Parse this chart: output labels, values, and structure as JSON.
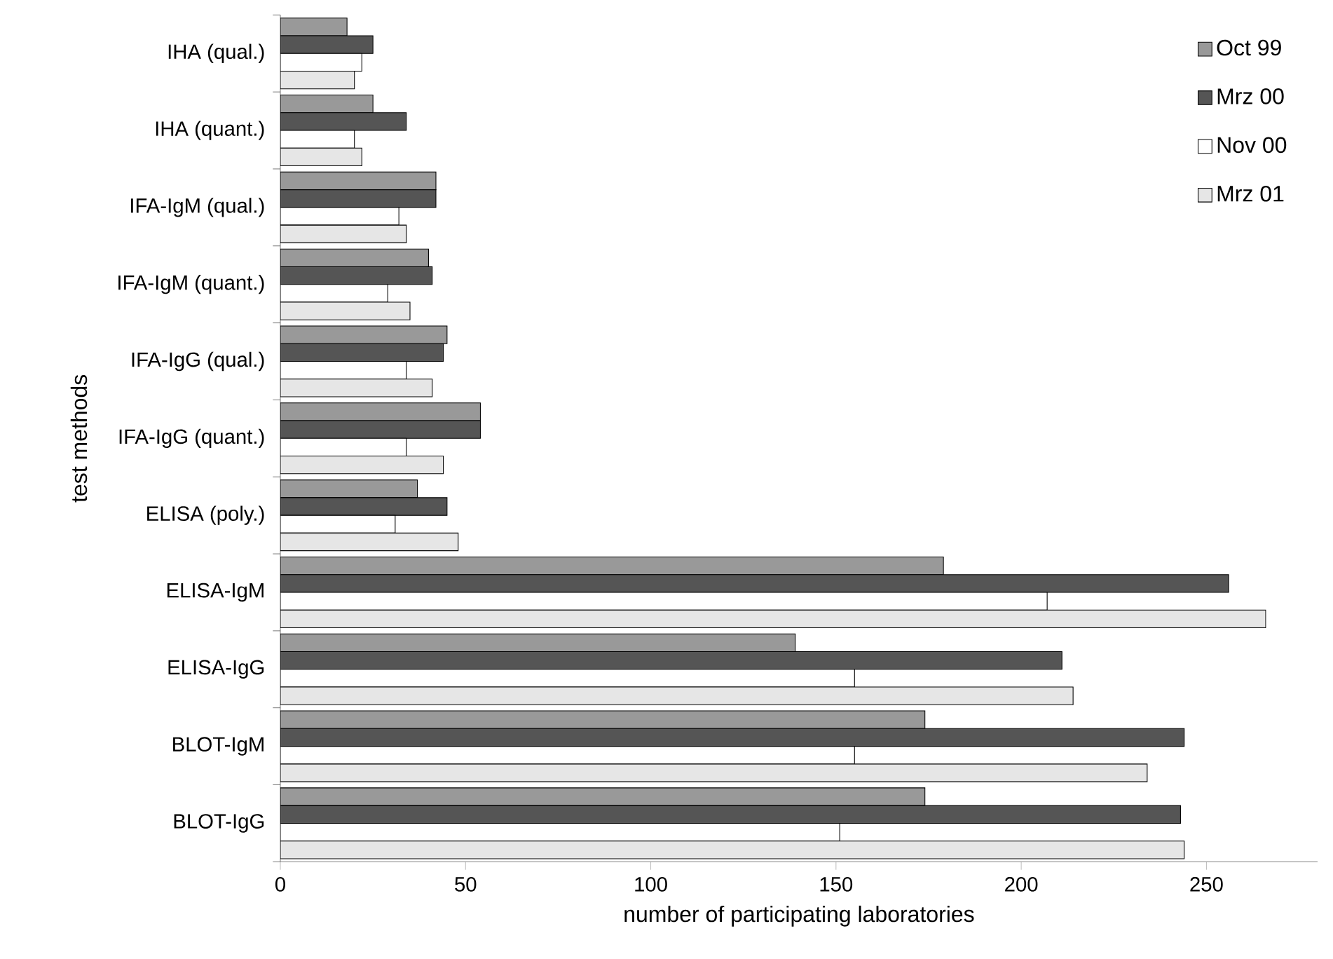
{
  "chart_data": {
    "type": "bar",
    "orientation": "horizontal",
    "xlabel": "number of participating laboratories",
    "ylabel": "test methods",
    "categories": [
      "IHA (qual.)",
      "IHA (quant.)",
      "IFA-IgM (qual.)",
      "IFA-IgM (quant.)",
      "IFA-IgG (qual.)",
      "IFA-IgG (quant.)",
      "ELISA (poly.)",
      "ELISA-IgM",
      "ELISA-IgG",
      "BLOT-IgM",
      "BLOT-IgG"
    ],
    "series": [
      {
        "name": "Oct 99",
        "color": "#999999",
        "values": [
          18,
          25,
          42,
          40,
          45,
          54,
          37,
          179,
          139,
          174,
          174
        ]
      },
      {
        "name": "Mrz 00",
        "color": "#555555",
        "values": [
          25,
          34,
          42,
          41,
          44,
          54,
          45,
          256,
          211,
          244,
          243
        ]
      },
      {
        "name": "Nov 00",
        "color": "#ffffff",
        "values": [
          22,
          20,
          32,
          29,
          34,
          34,
          31,
          207,
          155,
          155,
          151
        ]
      },
      {
        "name": "Mrz 01",
        "color": "#e6e6e6",
        "values": [
          20,
          22,
          34,
          35,
          41,
          44,
          48,
          266,
          214,
          234,
          244
        ]
      }
    ],
    "xlim": [
      0,
      280
    ],
    "xticks": [
      0,
      50,
      100,
      150,
      200,
      250
    ],
    "grid": false,
    "legend": "top right"
  }
}
